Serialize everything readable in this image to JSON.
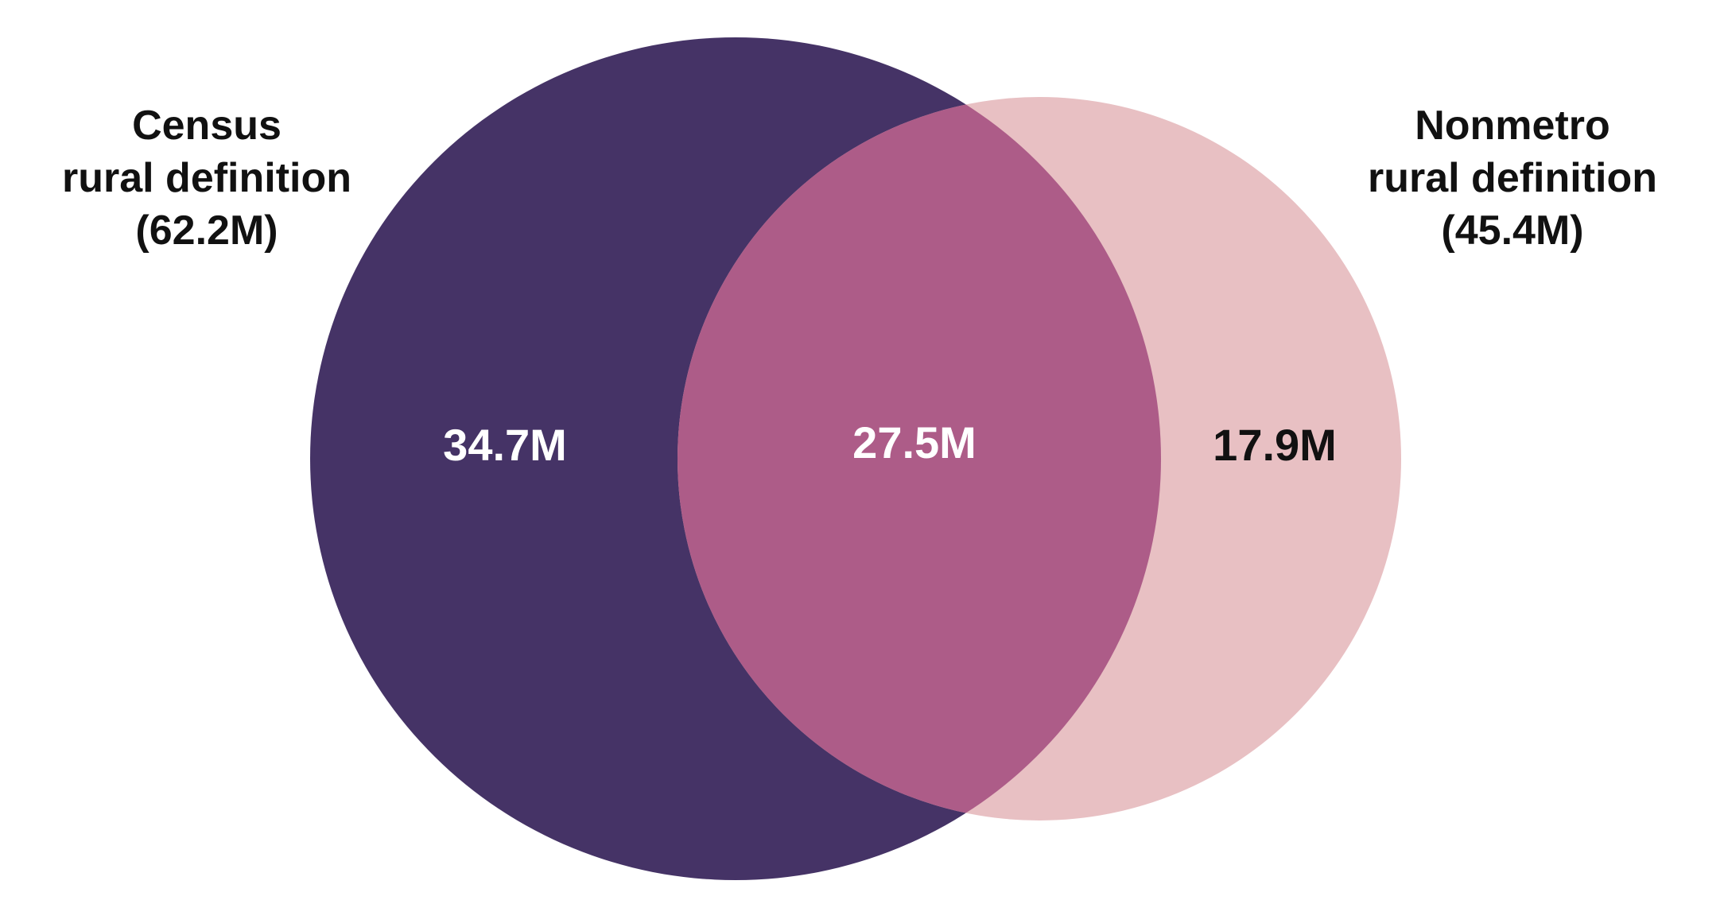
{
  "sets": {
    "left": {
      "title_line1": "Census",
      "title_line2": "rural definition",
      "total": "(62.2M)",
      "color": "#453366"
    },
    "right": {
      "title_line1": "Nonmetro",
      "title_line2": "rural definition",
      "total": "(45.4M)",
      "color": "#e8c0c3"
    }
  },
  "regions": {
    "left_only": {
      "value": "34.7M",
      "text_color": "#ffffff"
    },
    "overlap": {
      "value": "27.5M",
      "text_color": "#ffffff",
      "color": "#ad5c88"
    },
    "right_only": {
      "value": "17.9M",
      "text_color": "#111111"
    }
  }
}
